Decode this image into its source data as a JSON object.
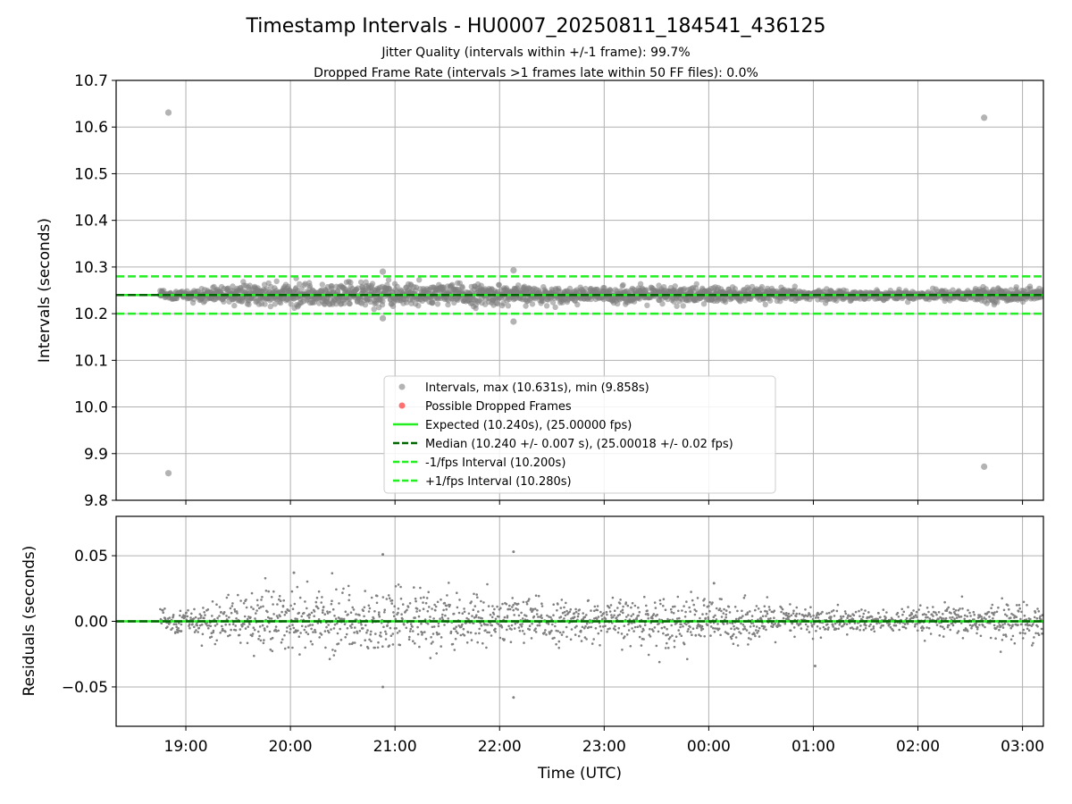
{
  "colors": {
    "points": "#808080",
    "dropped": "#ff3333",
    "expected": "#22ee22",
    "median": "#006400",
    "band": "#22ee22",
    "grid": "#b0b0b0"
  },
  "chart_data": [
    {
      "type": "scatter",
      "panel": "intervals",
      "title": "Timestamp Intervals - HU0007_20250811_184541_436125",
      "subtitle_lines": [
        "Jitter Quality (intervals within +/-1 frame): 99.7%",
        "Dropped Frame Rate (intervals >1 frames late within 50 FF files): 0.0%"
      ],
      "ylabel": "Intervals (seconds)",
      "ylim": [
        9.8,
        10.7
      ],
      "xlim": [
        "2025-08-11 18:20",
        "2025-08-12 03:12"
      ],
      "x_ticks": [
        "19:00",
        "20:00",
        "21:00",
        "22:00",
        "23:00",
        "00:00",
        "01:00",
        "02:00",
        "03:00"
      ],
      "y_ticks": [
        "10.7",
        "10.6",
        "10.5",
        "10.4",
        "10.3",
        "10.2",
        "10.1",
        "10.0",
        "9.9",
        "9.8"
      ],
      "y_tick_values": [
        10.7,
        10.6,
        10.5,
        10.4,
        10.3,
        10.2,
        10.1,
        10.0,
        9.9,
        9.8
      ],
      "grid": true,
      "legend_location": "lower center",
      "legend": [
        {
          "label": "Intervals, max (10.631s), min (9.858s)",
          "kind": "points"
        },
        {
          "label": "Possible Dropped Frames",
          "kind": "dropped"
        },
        {
          "label": "Expected (10.240s), (25.00000 fps)",
          "kind": "expected"
        },
        {
          "label": "Median (10.240 +/- 0.007 s), (25.00018 +/- 0.02 fps)",
          "kind": "median"
        },
        {
          "label": "-1/fps Interval (10.200s)",
          "kind": "band"
        },
        {
          "label": "+1/fps Interval (10.280s)",
          "kind": "band"
        }
      ],
      "reference_lines": {
        "expected": 10.24,
        "median": 10.24,
        "minus_one_frame": 10.2,
        "plus_one_frame": 10.28
      },
      "series": [
        {
          "kind": "outliers",
          "points": [
            {
              "x": "2025-08-11 18:50",
              "y": 10.631
            },
            {
              "x": "2025-08-11 18:50",
              "y": 9.858
            },
            {
              "x": "2025-08-12 02:38",
              "y": 10.62
            },
            {
              "x": "2025-08-12 02:38",
              "y": 9.872
            },
            {
              "x": "2025-08-11 20:53",
              "y": 10.29
            },
            {
              "x": "2025-08-11 20:53",
              "y": 10.19
            },
            {
              "x": "2025-08-11 22:08",
              "y": 10.293
            },
            {
              "x": "2025-08-11 22:08",
              "y": 10.183
            }
          ]
        },
        {
          "kind": "dense_band",
          "x_range": [
            "2025-08-11 18:45",
            "2025-08-12 03:12"
          ],
          "center": 10.24,
          "spread_profile": [
            {
              "x": "2025-08-11 18:45",
              "sd": 0.004
            },
            {
              "x": "2025-08-11 19:15",
              "sd": 0.008
            },
            {
              "x": "2025-08-11 19:45",
              "sd": 0.012
            },
            {
              "x": "2025-08-11 20:45",
              "sd": 0.013
            },
            {
              "x": "2025-08-11 21:45",
              "sd": 0.011
            },
            {
              "x": "2025-08-11 22:45",
              "sd": 0.007
            },
            {
              "x": "2025-08-11 23:45",
              "sd": 0.01
            },
            {
              "x": "2025-08-12 00:45",
              "sd": 0.006
            },
            {
              "x": "2025-08-12 01:45",
              "sd": 0.004
            },
            {
              "x": "2025-08-12 02:45",
              "sd": 0.007
            }
          ]
        }
      ]
    },
    {
      "type": "scatter",
      "panel": "residuals",
      "xlabel": "Time (UTC)",
      "ylabel": "Residuals (seconds)",
      "ylim": [
        -0.08,
        0.08
      ],
      "xlim": [
        "2025-08-11 18:20",
        "2025-08-12 03:12"
      ],
      "x_ticks": [
        "19:00",
        "20:00",
        "21:00",
        "22:00",
        "23:00",
        "00:00",
        "01:00",
        "02:00",
        "03:00"
      ],
      "y_ticks": [
        "0.05",
        "0.00",
        "−0.05"
      ],
      "y_tick_values": [
        0.05,
        0.0,
        -0.05
      ],
      "grid": true,
      "reference_lines": {
        "zero": 0.0
      },
      "series": [
        {
          "kind": "outliers",
          "points": [
            {
              "x": "2025-08-11 20:53",
              "y": 0.051
            },
            {
              "x": "2025-08-11 20:53",
              "y": -0.05
            },
            {
              "x": "2025-08-11 22:08",
              "y": 0.053
            },
            {
              "x": "2025-08-11 22:08",
              "y": -0.058
            },
            {
              "x": "2025-08-11 20:02",
              "y": 0.037
            },
            {
              "x": "2025-08-12 00:03",
              "y": 0.029
            },
            {
              "x": "2025-08-12 01:01",
              "y": -0.034
            }
          ]
        },
        {
          "kind": "dense_band",
          "x_range": [
            "2025-08-11 18:45",
            "2025-08-12 03:12"
          ],
          "center": 0.0,
          "spread_profile": [
            {
              "x": "2025-08-11 18:45",
              "sd": 0.004
            },
            {
              "x": "2025-08-11 19:15",
              "sd": 0.008
            },
            {
              "x": "2025-08-11 19:45",
              "sd": 0.012
            },
            {
              "x": "2025-08-11 20:45",
              "sd": 0.013
            },
            {
              "x": "2025-08-11 21:45",
              "sd": 0.011
            },
            {
              "x": "2025-08-11 22:45",
              "sd": 0.007
            },
            {
              "x": "2025-08-11 23:45",
              "sd": 0.01
            },
            {
              "x": "2025-08-12 00:45",
              "sd": 0.006
            },
            {
              "x": "2025-08-12 01:45",
              "sd": 0.004
            },
            {
              "x": "2025-08-12 02:45",
              "sd": 0.007
            }
          ]
        }
      ]
    }
  ]
}
